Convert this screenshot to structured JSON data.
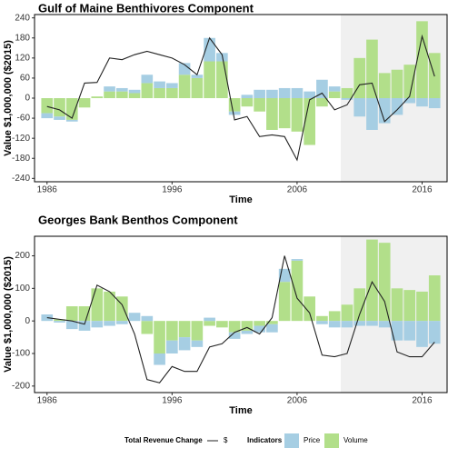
{
  "chart_data": [
    {
      "type": "stacked-bar-line",
      "title": "Gulf of Maine Benthivores Component",
      "xlabel": "Time",
      "ylabel": "Value $1,000,000 ($2015)",
      "x": [
        1986,
        1987,
        1988,
        1989,
        1990,
        1991,
        1992,
        1993,
        1994,
        1995,
        1996,
        1997,
        1998,
        1999,
        2000,
        2001,
        2002,
        2003,
        2004,
        2005,
        2006,
        2007,
        2008,
        2009,
        2010,
        2011,
        2012,
        2013,
        2014,
        2015,
        2016,
        2017
      ],
      "series": [
        {
          "name": "Volume",
          "kind": "bar",
          "color": "#b2df8a",
          "values": [
            -45,
            -55,
            -65,
            -28,
            5,
            20,
            20,
            15,
            45,
            30,
            30,
            70,
            60,
            110,
            110,
            -40,
            -25,
            -40,
            -95,
            -90,
            -100,
            -140,
            -25,
            20,
            30,
            120,
            175,
            75,
            85,
            100,
            230,
            135
          ]
        },
        {
          "name": "Price",
          "kind": "bar",
          "color": "#a6cee3",
          "values": [
            -15,
            -10,
            -5,
            0,
            0,
            15,
            10,
            10,
            25,
            20,
            15,
            35,
            10,
            70,
            25,
            -10,
            10,
            25,
            25,
            30,
            30,
            20,
            55,
            15,
            -5,
            -55,
            -95,
            -75,
            -50,
            -15,
            -25,
            -30
          ]
        },
        {
          "name": "$",
          "kind": "line",
          "color": "#222222",
          "values": [
            -25,
            -35,
            -60,
            45,
            47,
            120,
            115,
            130,
            140,
            130,
            120,
            100,
            70,
            180,
            130,
            -65,
            -55,
            -115,
            -110,
            -115,
            -185,
            -5,
            15,
            -35,
            -20,
            40,
            45,
            -70,
            -35,
            5,
            185,
            65
          ]
        }
      ],
      "xlim": [
        1985,
        2018
      ],
      "xticks": [
        1986,
        1996,
        2006,
        2016
      ],
      "ylim": [
        -250,
        250
      ],
      "yticks": [
        -240,
        -180,
        -120,
        -60,
        0,
        60,
        120,
        180,
        240
      ],
      "highlight_xlim": [
        2009.5,
        2018
      ],
      "highlight_color": "#f0f0f0"
    },
    {
      "type": "stacked-bar-line",
      "title": "Georges Bank Benthos Component",
      "xlabel": "Time",
      "ylabel": "Value $1,000,000 ($2015)",
      "x": [
        1986,
        1987,
        1988,
        1989,
        1990,
        1991,
        1992,
        1993,
        1994,
        1995,
        1996,
        1997,
        1998,
        1999,
        2000,
        2001,
        2002,
        2003,
        2004,
        2005,
        2006,
        2007,
        2008,
        2009,
        2010,
        2011,
        2012,
        2013,
        2014,
        2015,
        2016,
        2017
      ],
      "series": [
        {
          "name": "Volume",
          "kind": "bar",
          "color": "#b2df8a",
          "values": [
            0,
            5,
            45,
            45,
            100,
            90,
            75,
            0,
            -40,
            -100,
            -60,
            -50,
            -60,
            -15,
            -20,
            -35,
            -30,
            -15,
            -10,
            120,
            185,
            75,
            15,
            30,
            50,
            100,
            250,
            240,
            100,
            95,
            90,
            140
          ]
        },
        {
          "name": "Price",
          "kind": "bar",
          "color": "#a6cee3",
          "values": [
            20,
            -5,
            -25,
            -30,
            -20,
            -15,
            -10,
            25,
            15,
            -35,
            -40,
            -40,
            -20,
            10,
            0,
            -20,
            -10,
            -20,
            -25,
            40,
            5,
            0,
            -10,
            -20,
            -20,
            -15,
            -15,
            -20,
            -60,
            -60,
            -80,
            -70
          ]
        },
        {
          "name": "$",
          "kind": "line",
          "color": "#222222",
          "values": [
            10,
            5,
            0,
            -10,
            110,
            90,
            50,
            -40,
            -180,
            -190,
            -140,
            -155,
            -155,
            -80,
            -70,
            -35,
            -20,
            -40,
            10,
            200,
            70,
            25,
            -105,
            -110,
            -100,
            20,
            120,
            60,
            -95,
            -110,
            -110,
            -65
          ]
        }
      ],
      "xlim": [
        1985,
        2018
      ],
      "xticks": [
        1986,
        1996,
        2006,
        2016
      ],
      "ylim": [
        -220,
        260
      ],
      "yticks": [
        -200,
        -100,
        0,
        100,
        200
      ],
      "highlight_xlim": [
        2009.5,
        2018
      ],
      "highlight_color": "#f0f0f0"
    }
  ],
  "legend": {
    "line_title": "Total Revenue Change",
    "fill_title": "Indicators"
  }
}
